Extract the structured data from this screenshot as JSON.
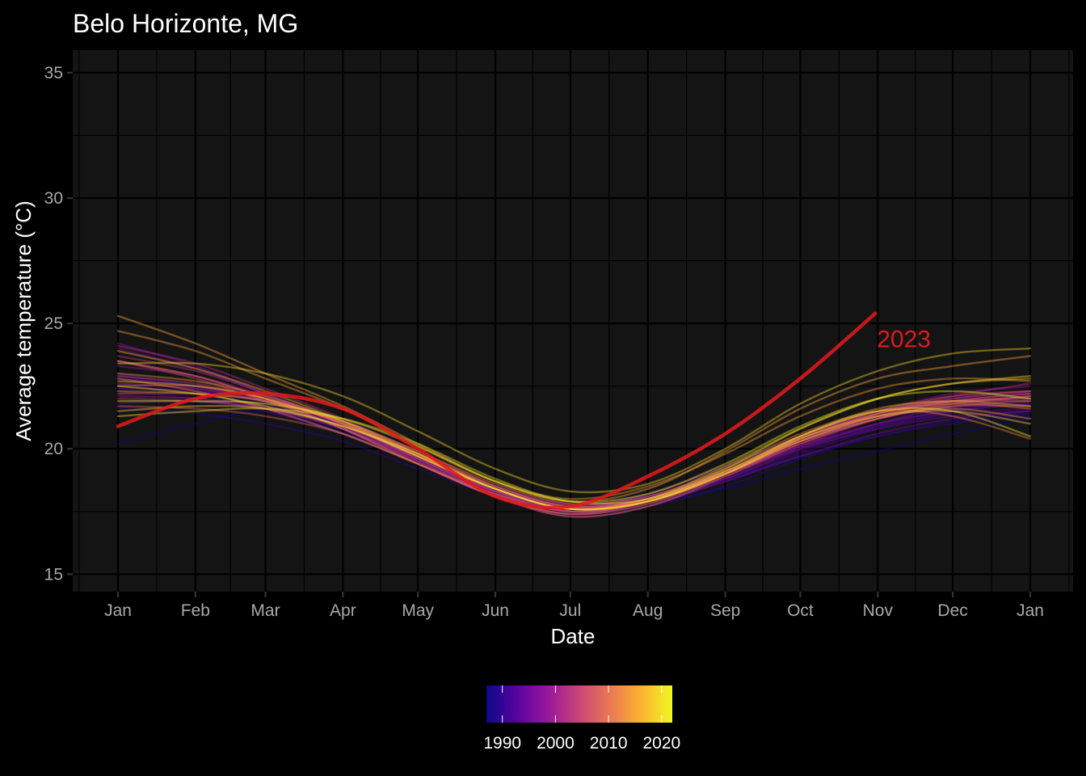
{
  "chart_data": {
    "type": "line",
    "title": "Belo Horizonte, MG",
    "xlabel": "Date",
    "ylabel": "Average temperature (°C)",
    "x_ticks": [
      "Jan",
      "Feb",
      "Mar",
      "Apr",
      "May",
      "Jun",
      "Jul",
      "Aug",
      "Sep",
      "Oct",
      "Nov",
      "Dec",
      "Jan"
    ],
    "ylim": [
      14.3,
      35.9
    ],
    "y_ticks": [
      15,
      20,
      25,
      30,
      35
    ],
    "grid": true,
    "legend": {
      "type": "colorbar",
      "placement": "bottom",
      "range": [
        1987,
        2022
      ],
      "ticks": [
        1990,
        2000,
        2010,
        2020
      ],
      "palette": [
        "#0d0887",
        "#5b02a3",
        "#9a179b",
        "#cb4678",
        "#eb7852",
        "#fbb32f",
        "#f0f921"
      ]
    },
    "highlight": {
      "label": "2023",
      "color": "#e0191c",
      "x": [
        "2023-01-01",
        "2023-02-01",
        "2023-03-01",
        "2023-04-01",
        "2023-05-01",
        "2023-06-01",
        "2023-07-01",
        "2023-08-01",
        "2023-09-01",
        "2023-10-01",
        "2023-10-31"
      ],
      "y": [
        20.9,
        22.0,
        22.2,
        21.6,
        20.0,
        18.1,
        17.7,
        18.9,
        20.6,
        22.8,
        25.4
      ]
    },
    "x_month_start": [
      1,
      32,
      60,
      91,
      121,
      152,
      182,
      213,
      244,
      274,
      305,
      335,
      366
    ],
    "series": [
      {
        "year": 1987,
        "values": [
          20.2,
          21.0,
          21.5,
          20.8,
          19.6,
          18.3,
          17.7,
          17.9,
          18.4,
          19.2,
          19.9,
          20.6,
          21.2
        ]
      },
      {
        "year": 1988,
        "values": [
          22.6,
          22.2,
          21.6,
          20.7,
          19.5,
          18.3,
          17.6,
          18.2,
          19.3,
          20.4,
          21.2,
          21.6,
          21.8
        ]
      },
      {
        "year": 1989,
        "values": [
          21.6,
          21.4,
          21.0,
          20.3,
          19.2,
          18.1,
          17.4,
          17.7,
          18.5,
          19.6,
          20.5,
          21.0,
          21.3
        ]
      },
      {
        "year": 1990,
        "values": [
          22.9,
          22.5,
          21.8,
          20.8,
          19.6,
          18.4,
          17.7,
          18.0,
          18.8,
          19.7,
          20.5,
          21.1,
          21.4
        ]
      },
      {
        "year": 1991,
        "values": [
          23.0,
          22.4,
          21.6,
          20.6,
          19.4,
          18.2,
          17.5,
          17.9,
          18.7,
          19.8,
          20.8,
          21.5,
          22.0
        ]
      },
      {
        "year": 1992,
        "values": [
          22.3,
          22.0,
          21.5,
          20.6,
          19.4,
          18.2,
          17.6,
          18.1,
          19.1,
          20.1,
          20.9,
          21.4,
          21.6
        ]
      },
      {
        "year": 1993,
        "values": [
          21.8,
          21.9,
          21.6,
          20.9,
          19.7,
          18.4,
          17.7,
          18.0,
          18.8,
          19.9,
          20.9,
          21.6,
          22.1
        ]
      },
      {
        "year": 1994,
        "values": [
          22.4,
          22.3,
          21.9,
          21.0,
          19.8,
          18.5,
          17.8,
          18.1,
          19.0,
          20.0,
          20.8,
          21.3,
          21.5
        ]
      },
      {
        "year": 1995,
        "values": [
          24.0,
          23.2,
          22.2,
          21.0,
          19.6,
          18.3,
          17.5,
          17.8,
          18.7,
          19.7,
          20.6,
          21.2,
          21.5
        ]
      },
      {
        "year": 1996,
        "values": [
          22.8,
          22.5,
          21.9,
          20.9,
          19.6,
          18.3,
          17.6,
          18.0,
          19.0,
          20.1,
          21.0,
          21.5,
          21.8
        ]
      },
      {
        "year": 1997,
        "values": [
          24.2,
          23.3,
          22.2,
          20.9,
          19.5,
          18.1,
          17.3,
          17.7,
          18.8,
          20.0,
          21.0,
          21.7,
          22.1
        ]
      },
      {
        "year": 1998,
        "values": [
          23.3,
          22.9,
          22.1,
          21.0,
          19.7,
          18.4,
          17.7,
          18.2,
          19.3,
          20.5,
          21.5,
          22.2,
          22.5
        ]
      },
      {
        "year": 1999,
        "values": [
          22.1,
          22.0,
          21.7,
          20.9,
          19.7,
          18.4,
          17.6,
          17.9,
          18.9,
          20.1,
          21.2,
          21.8,
          22.1
        ]
      },
      {
        "year": 2000,
        "values": [
          23.5,
          22.9,
          22.0,
          20.8,
          19.4,
          18.1,
          17.4,
          17.9,
          19.0,
          20.3,
          21.3,
          22.0,
          22.3
        ]
      },
      {
        "year": 2001,
        "values": [
          22.6,
          22.4,
          21.9,
          21.0,
          19.8,
          18.5,
          17.7,
          18.0,
          19.0,
          20.2,
          21.2,
          21.9,
          22.2
        ]
      },
      {
        "year": 2002,
        "values": [
          24.1,
          23.4,
          22.4,
          21.2,
          19.8,
          18.4,
          17.6,
          18.0,
          19.1,
          20.3,
          21.4,
          22.1,
          22.6
        ]
      },
      {
        "year": 2003,
        "values": [
          23.7,
          23.1,
          22.2,
          21.0,
          19.6,
          18.2,
          17.4,
          17.9,
          19.0,
          20.4,
          21.4,
          22.0,
          22.3
        ]
      },
      {
        "year": 2004,
        "values": [
          22.0,
          21.9,
          21.6,
          20.8,
          19.6,
          18.3,
          17.6,
          18.0,
          19.1,
          20.3,
          21.2,
          21.7,
          21.9
        ]
      },
      {
        "year": 2005,
        "values": [
          22.9,
          22.6,
          22.0,
          21.0,
          19.7,
          18.3,
          17.5,
          17.9,
          19.1,
          20.5,
          21.5,
          22.1,
          22.3
        ]
      },
      {
        "year": 2006,
        "values": [
          23.5,
          22.8,
          21.9,
          20.8,
          19.5,
          18.2,
          17.5,
          17.9,
          19.0,
          20.4,
          21.4,
          21.9,
          22.0
        ]
      },
      {
        "year": 2007,
        "values": [
          22.2,
          22.2,
          21.9,
          21.1,
          19.9,
          18.5,
          17.7,
          18.0,
          19.0,
          20.3,
          21.3,
          21.9,
          22.2
        ]
      },
      {
        "year": 2008,
        "values": [
          21.7,
          21.6,
          21.3,
          20.6,
          19.4,
          18.2,
          17.5,
          17.9,
          19.0,
          20.3,
          21.2,
          21.7,
          21.7
        ]
      },
      {
        "year": 2009,
        "values": [
          22.5,
          22.5,
          22.0,
          21.1,
          19.8,
          18.5,
          17.7,
          18.0,
          19.1,
          20.5,
          21.5,
          21.9,
          21.9
        ]
      },
      {
        "year": 2010,
        "values": [
          23.5,
          22.9,
          22.0,
          20.8,
          19.4,
          18.1,
          17.3,
          17.7,
          18.9,
          20.2,
          21.2,
          21.8,
          22.1
        ]
      },
      {
        "year": 2011,
        "values": [
          22.8,
          22.3,
          21.6,
          20.6,
          19.4,
          18.1,
          17.4,
          17.8,
          19.0,
          20.4,
          21.4,
          21.8,
          21.6
        ]
      },
      {
        "year": 2012,
        "values": [
          22.3,
          22.2,
          21.9,
          21.1,
          19.9,
          18.6,
          17.8,
          18.1,
          19.2,
          20.6,
          21.5,
          21.3,
          20.4
        ]
      },
      {
        "year": 2013,
        "values": [
          23.0,
          22.7,
          22.1,
          21.1,
          19.8,
          18.4,
          17.6,
          17.9,
          19.0,
          20.3,
          21.3,
          21.6,
          21.2
        ]
      },
      {
        "year": 2014,
        "values": [
          24.7,
          23.9,
          22.8,
          21.6,
          20.1,
          18.7,
          18.0,
          18.5,
          19.8,
          21.3,
          22.4,
          22.8,
          22.7
        ]
      },
      {
        "year": 2015,
        "values": [
          25.3,
          24.2,
          23.0,
          21.7,
          20.2,
          18.7,
          17.9,
          18.4,
          19.9,
          21.6,
          22.8,
          23.3,
          23.7
        ]
      },
      {
        "year": 2016,
        "values": [
          23.9,
          23.2,
          22.3,
          21.1,
          19.7,
          18.4,
          17.6,
          18.0,
          19.3,
          20.8,
          22.0,
          22.6,
          22.8
        ]
      },
      {
        "year": 2017,
        "values": [
          22.7,
          22.5,
          22.0,
          21.0,
          19.7,
          18.4,
          17.6,
          17.9,
          19.0,
          20.5,
          21.6,
          21.9,
          21.7
        ]
      },
      {
        "year": 2018,
        "values": [
          21.5,
          21.7,
          21.6,
          20.9,
          19.7,
          18.4,
          17.6,
          17.9,
          19.0,
          20.4,
          21.3,
          21.5,
          21.0
        ]
      },
      {
        "year": 2019,
        "values": [
          23.4,
          23.4,
          23.0,
          22.1,
          20.7,
          19.2,
          18.3,
          18.6,
          20.0,
          21.8,
          23.1,
          23.8,
          24.0
        ]
      },
      {
        "year": 2020,
        "values": [
          21.3,
          21.5,
          21.6,
          21.2,
          20.2,
          18.8,
          17.9,
          18.0,
          19.2,
          20.8,
          22.0,
          22.6,
          22.9
        ]
      },
      {
        "year": 2021,
        "values": [
          22.5,
          22.2,
          21.7,
          20.9,
          19.8,
          18.4,
          17.6,
          17.9,
          19.1,
          20.5,
          21.5,
          21.5,
          20.5
        ]
      },
      {
        "year": 2022,
        "values": [
          21.9,
          21.9,
          21.8,
          21.2,
          20.1,
          18.7,
          17.9,
          18.2,
          19.4,
          20.9,
          22.0,
          22.3,
          22.0
        ]
      }
    ]
  }
}
